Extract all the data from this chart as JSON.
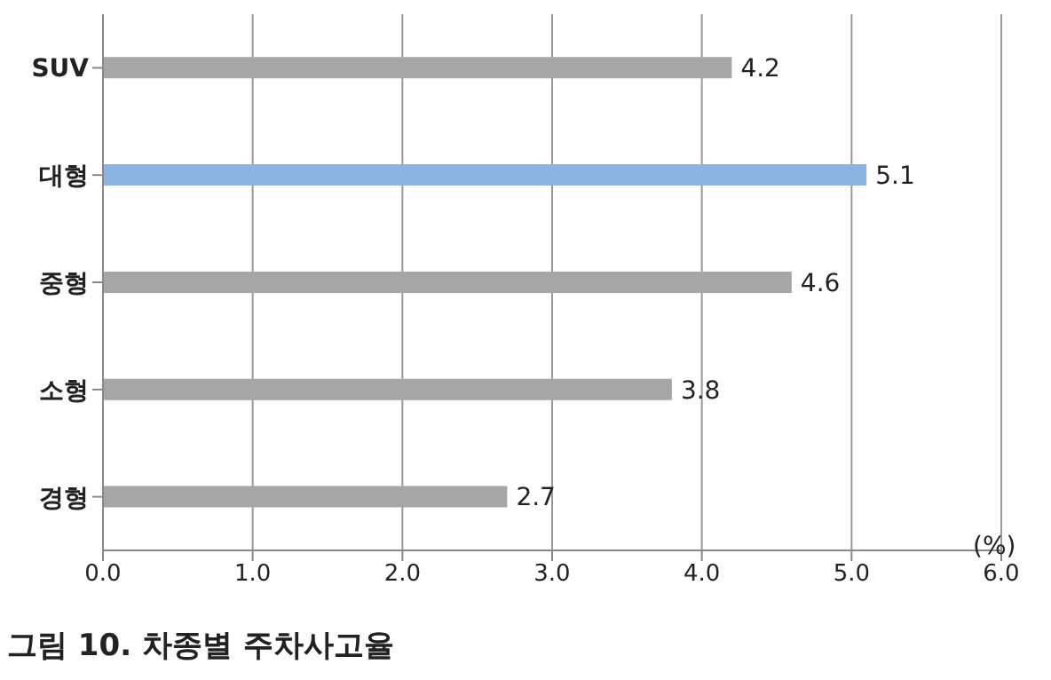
{
  "chart_data": {
    "type": "bar",
    "orientation": "horizontal",
    "title": "그림 10. 차종별 주차사고율",
    "xlabel": "(%)",
    "categories": [
      "SUV",
      "대형",
      "중형",
      "소형",
      "경형"
    ],
    "values": [
      4.2,
      5.1,
      4.6,
      3.8,
      2.7
    ],
    "colors": [
      "#a6a6a6",
      "#8db3e2",
      "#a6a6a6",
      "#a6a6a6",
      "#a6a6a6"
    ],
    "xlim": [
      0,
      6
    ],
    "xticks": [
      {
        "value": 0,
        "label": "0.0"
      },
      {
        "value": 1,
        "label": "1.0"
      },
      {
        "value": 2,
        "label": "2.0"
      },
      {
        "value": 3,
        "label": "3.0"
      },
      {
        "value": 4,
        "label": "4.0"
      },
      {
        "value": 5,
        "label": "5.0"
      },
      {
        "value": 6,
        "label": "6.0"
      }
    ],
    "grid": "x",
    "data_labels": true
  }
}
